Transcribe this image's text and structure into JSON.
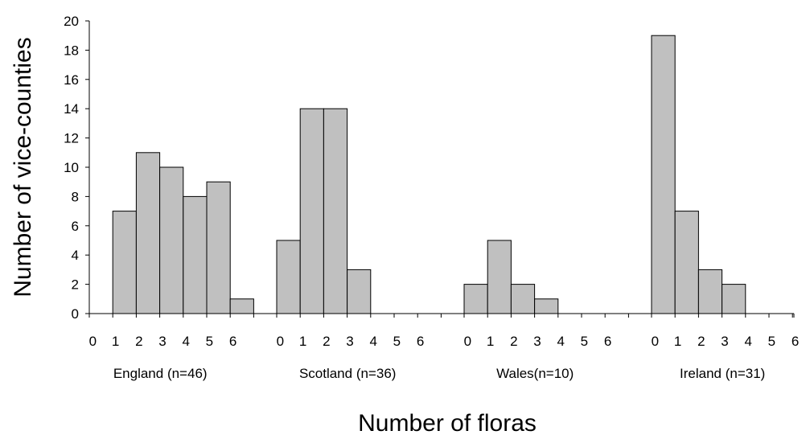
{
  "chart_data": {
    "type": "bar",
    "title": "",
    "xlabel": "Number of floras",
    "ylabel": "Number of vice-counties",
    "ylim": [
      0,
      20
    ],
    "yticks": [
      0,
      2,
      4,
      6,
      8,
      10,
      12,
      14,
      16,
      18,
      20
    ],
    "grid": false,
    "legend": "none",
    "bar_color": "#c0c0c0",
    "categories": [
      "0",
      "1",
      "2",
      "3",
      "4",
      "5",
      "6"
    ],
    "groups": [
      {
        "label": "England (n=46)",
        "values": [
          0,
          7,
          11,
          10,
          8,
          9,
          1
        ]
      },
      {
        "label": "Scotland (n=36)",
        "values": [
          5,
          14,
          14,
          3,
          0,
          0,
          0
        ]
      },
      {
        "label": "Wales(n=10)",
        "values": [
          2,
          5,
          2,
          1,
          0,
          0,
          0
        ]
      },
      {
        "label": "Ireland (n=31)",
        "values": [
          19,
          7,
          3,
          2,
          0,
          0,
          0
        ]
      }
    ]
  }
}
